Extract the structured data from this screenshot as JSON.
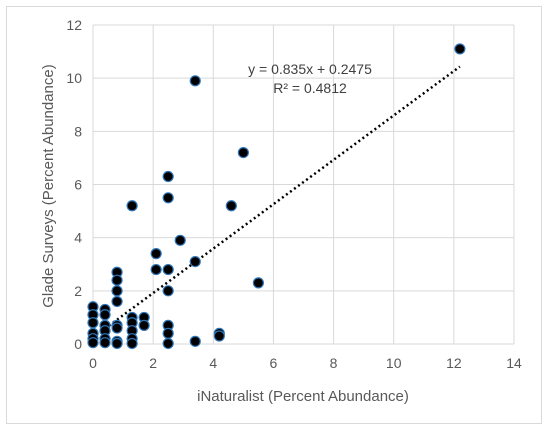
{
  "chart_data": {
    "type": "scatter",
    "title": "",
    "xlabel": "iNaturalist (Percent Abundance)",
    "ylabel": "Glade Surveys (Percent Abundance)",
    "xlim": [
      0,
      14
    ],
    "ylim": [
      0,
      12
    ],
    "x_ticks": [
      0,
      2,
      4,
      6,
      8,
      10,
      12,
      14
    ],
    "y_ticks": [
      0,
      2,
      4,
      6,
      8,
      10,
      12
    ],
    "grid": true,
    "legend": "none",
    "marker_color": "#000000",
    "marker_edge_color": "#2e75b6",
    "points": [
      {
        "x": 0,
        "y": 1.4
      },
      {
        "x": 0,
        "y": 1.1
      },
      {
        "x": 0,
        "y": 0.8
      },
      {
        "x": 0,
        "y": 0.4
      },
      {
        "x": 0,
        "y": 0.2
      },
      {
        "x": 0,
        "y": 0.05
      },
      {
        "x": 0.4,
        "y": 1.3
      },
      {
        "x": 0.4,
        "y": 1.1
      },
      {
        "x": 0.4,
        "y": 0.7
      },
      {
        "x": 0.4,
        "y": 0.5
      },
      {
        "x": 0.4,
        "y": 0.2
      },
      {
        "x": 0.4,
        "y": 0.05
      },
      {
        "x": 0.8,
        "y": 2.7
      },
      {
        "x": 0.8,
        "y": 2.4
      },
      {
        "x": 0.8,
        "y": 2.0
      },
      {
        "x": 0.8,
        "y": 1.6
      },
      {
        "x": 0.8,
        "y": 0.7
      },
      {
        "x": 0.8,
        "y": 0.6
      },
      {
        "x": 0.8,
        "y": 0.1
      },
      {
        "x": 0.8,
        "y": 0.02
      },
      {
        "x": 1.3,
        "y": 5.2
      },
      {
        "x": 1.3,
        "y": 1.0
      },
      {
        "x": 1.3,
        "y": 0.8
      },
      {
        "x": 1.3,
        "y": 0.5
      },
      {
        "x": 1.3,
        "y": 0.2
      },
      {
        "x": 1.3,
        "y": 0.02
      },
      {
        "x": 1.7,
        "y": 1.0
      },
      {
        "x": 1.7,
        "y": 0.7
      },
      {
        "x": 2.1,
        "y": 3.4
      },
      {
        "x": 2.1,
        "y": 2.8
      },
      {
        "x": 2.5,
        "y": 6.3
      },
      {
        "x": 2.5,
        "y": 5.5
      },
      {
        "x": 2.5,
        "y": 2.8
      },
      {
        "x": 2.5,
        "y": 2.0
      },
      {
        "x": 2.5,
        "y": 0.7
      },
      {
        "x": 2.5,
        "y": 0.4
      },
      {
        "x": 2.5,
        "y": 0.02
      },
      {
        "x": 2.9,
        "y": 3.9
      },
      {
        "x": 3.4,
        "y": 9.9
      },
      {
        "x": 3.4,
        "y": 3.1
      },
      {
        "x": 3.4,
        "y": 0.1
      },
      {
        "x": 4.2,
        "y": 0.4
      },
      {
        "x": 4.2,
        "y": 0.3
      },
      {
        "x": 4.6,
        "y": 5.2
      },
      {
        "x": 5.0,
        "y": 7.2
      },
      {
        "x": 5.5,
        "y": 2.3
      },
      {
        "x": 12.2,
        "y": 11.1
      }
    ],
    "trendline": {
      "type": "linear",
      "slope": 0.835,
      "intercept": 0.2475,
      "x_range": [
        0.4,
        12.2
      ],
      "equation_label": "y = 0.835x + 0.2475",
      "r2_label": "R² = 0.4812"
    }
  }
}
